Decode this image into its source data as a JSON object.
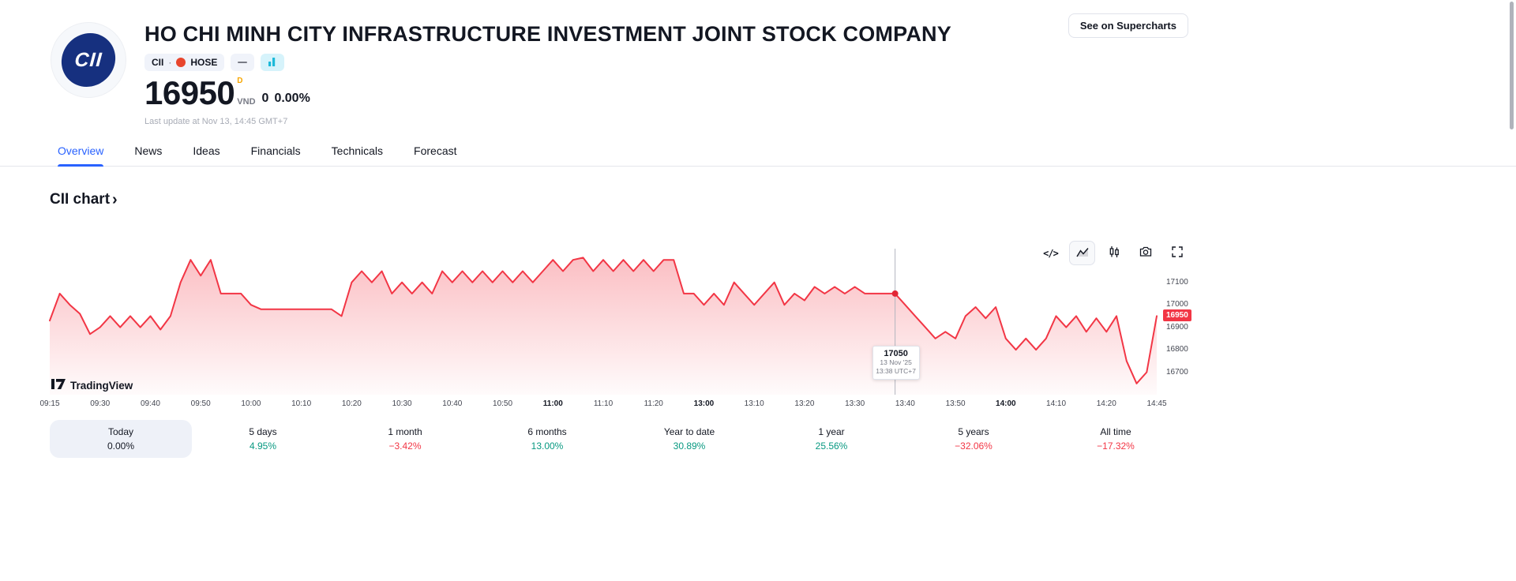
{
  "header": {
    "title": "HO CHI MINH CITY INFRASTRUCTURE INVESTMENT JOINT STOCK COMPANY",
    "logo_text": "CII",
    "symbol": "CII",
    "separator": "·",
    "exchange": "HOSE",
    "supercharts_button": "See on Supercharts",
    "price": "16950",
    "price_superscript": "D",
    "currency": "VND",
    "change_value": "0",
    "change_percent": "0.00%",
    "last_update": "Last update at Nov 13, 14:45 GMT+7"
  },
  "tabs": [
    {
      "label": "Overview",
      "active": true
    },
    {
      "label": "News",
      "active": false
    },
    {
      "label": "Ideas",
      "active": false
    },
    {
      "label": "Financials",
      "active": false
    },
    {
      "label": "Technicals",
      "active": false
    },
    {
      "label": "Forecast",
      "active": false
    }
  ],
  "chart_section": {
    "title": "CII chart",
    "chevron": "›",
    "watermark": "TradingView"
  },
  "tooltip": {
    "price": "17050",
    "date": "13 Nov '25",
    "time": "13:38 UTC+7"
  },
  "price_scale": {
    "labels": [
      17100,
      17000,
      16900,
      16800,
      16700
    ],
    "last_price": "16950"
  },
  "periods": [
    {
      "label": "Today",
      "value": "0.00%",
      "tone": "neutral",
      "selected": true
    },
    {
      "label": "5 days",
      "value": "4.95%",
      "tone": "up",
      "selected": false
    },
    {
      "label": "1 month",
      "value": "−3.42%",
      "tone": "down",
      "selected": false
    },
    {
      "label": "6 months",
      "value": "13.00%",
      "tone": "up",
      "selected": false
    },
    {
      "label": "Year to date",
      "value": "30.89%",
      "tone": "up",
      "selected": false
    },
    {
      "label": "1 year",
      "value": "25.56%",
      "tone": "up",
      "selected": false
    },
    {
      "label": "5 years",
      "value": "−32.06%",
      "tone": "down",
      "selected": false
    },
    {
      "label": "All time",
      "value": "−17.32%",
      "tone": "down",
      "selected": false
    }
  ],
  "colors": {
    "accent": "#2962ff",
    "up": "#089981",
    "down": "#f23645",
    "line": "#f23645"
  },
  "chart_data": {
    "type": "area",
    "title": "CII intraday price",
    "ylabel": "VND",
    "ylim": [
      16600,
      17250
    ],
    "y_gridlines": [
      17100,
      17000,
      16900,
      16800,
      16700
    ],
    "x_ticks": [
      "09:15",
      "09:30",
      "09:40",
      "09:50",
      "10:00",
      "10:10",
      "10:20",
      "10:30",
      "10:40",
      "10:50",
      "11:00",
      "11:10",
      "11:20",
      "13:00",
      "13:10",
      "13:20",
      "13:30",
      "13:40",
      "13:50",
      "14:00",
      "14:10",
      "14:20",
      "14:45"
    ],
    "strong_ticks": [
      "11:00",
      "13:00",
      "14:00"
    ],
    "values": [
      16930,
      17050,
      17000,
      16960,
      16870,
      16900,
      16950,
      16900,
      16950,
      16900,
      16950,
      16890,
      16950,
      17100,
      17200,
      17130,
      17200,
      17050,
      17050,
      17050,
      17000,
      16980,
      16980,
      16980,
      16980,
      16980,
      16980,
      16980,
      16980,
      16950,
      17100,
      17150,
      17100,
      17150,
      17050,
      17100,
      17050,
      17100,
      17050,
      17150,
      17100,
      17150,
      17100,
      17150,
      17100,
      17150,
      17100,
      17150,
      17100,
      17150,
      17200,
      17150,
      17200,
      17210,
      17150,
      17200,
      17150,
      17200,
      17150,
      17200,
      17150,
      17200,
      17200,
      17050,
      17050,
      17000,
      17050,
      17000,
      17100,
      17050,
      17000,
      17050,
      17100,
      17000,
      17050,
      17020,
      17080,
      17050,
      17080,
      17050,
      17080,
      17050,
      17050,
      17050,
      17050,
      17000,
      16950,
      16900,
      16850,
      16880,
      16850,
      16950,
      16990,
      16940,
      16990,
      16850,
      16800,
      16850,
      16800,
      16850,
      16950,
      16900,
      16950,
      16880,
      16940,
      16880,
      16950,
      16750,
      16650,
      16700,
      16950
    ],
    "crosshair": {
      "index": 84,
      "price": 17050,
      "date": "13 Nov '25",
      "time": "13:38 UTC+7"
    },
    "last_value": 16950,
    "line_color": "#f23645"
  }
}
